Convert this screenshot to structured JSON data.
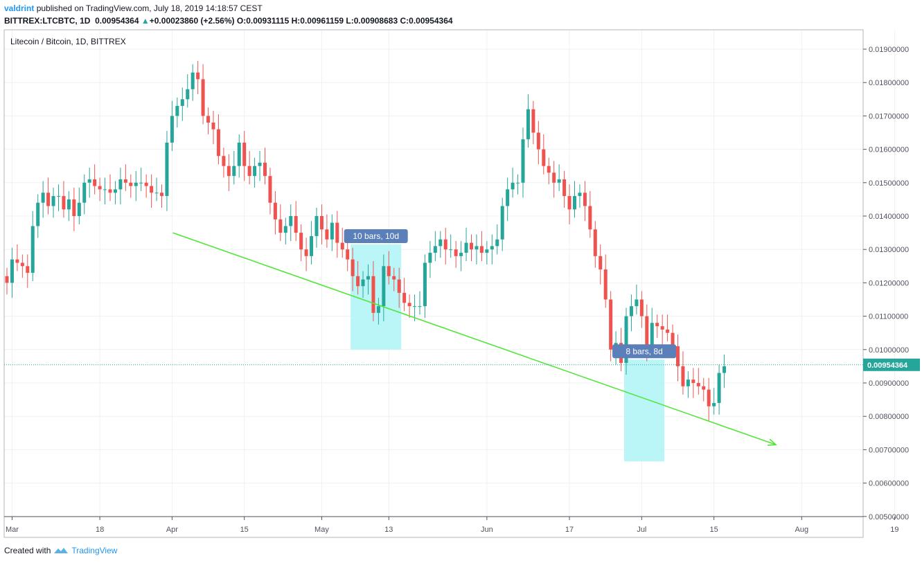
{
  "header": {
    "user": "valdrint",
    "published": "published on TradingView.com, July 18, 2019 14:18:57 CEST",
    "symbol": "BITTREX:LTCBTC, 1D",
    "last": "0.00954364",
    "change": "+0.00023860 (+2.56%)",
    "o_label": "O:",
    "o": "0.00931115",
    "h_label": "H:",
    "h": "0.00961159",
    "l_label": "L:",
    "l": "0.00908683",
    "c_label": "C:",
    "c": "0.00954364"
  },
  "footer": {
    "created": "Created with",
    "brand": "TradingView"
  },
  "colors": {
    "up": "#26a69a",
    "down": "#ef5350",
    "trend": "#53e63a",
    "highlight": "#aef5f7",
    "label_bg": "#5b7fb9",
    "price_tag": "#26a69a"
  },
  "chart_data": {
    "type": "candlestick",
    "title": "Litecoin / Bitcoin, 1D, BITTREX",
    "y_ticks": [
      "0.01900000",
      "0.01800000",
      "0.01700000",
      "0.01600000",
      "0.01500000",
      "0.01400000",
      "0.01300000",
      "0.01200000",
      "0.01100000",
      "0.01000000",
      "0.00900000",
      "0.00800000",
      "0.00700000",
      "0.00600000",
      "0.00500000"
    ],
    "ylim": [
      0.005,
      0.0197
    ],
    "x_ticks": [
      "Mar",
      "18",
      "Apr",
      "15",
      "May",
      "13",
      "Jun",
      "17",
      "Jul",
      "15",
      "Aug",
      "19"
    ],
    "current_price": "0.00954364",
    "closes": [
      0.012,
      0.0127,
      0.0126,
      0.0125,
      0.0123,
      0.0137,
      0.0144,
      0.0147,
      0.0143,
      0.0146,
      0.0146,
      0.0142,
      0.0145,
      0.014,
      0.0144,
      0.015,
      0.0151,
      0.0149,
      0.0148,
      0.0148,
      0.0147,
      0.0148,
      0.0151,
      0.015,
      0.0149,
      0.015,
      0.015,
      0.0149,
      0.0147,
      0.0147,
      0.0146,
      0.0162,
      0.017,
      0.0173,
      0.0175,
      0.0178,
      0.0183,
      0.0181,
      0.017,
      0.0168,
      0.0166,
      0.0158,
      0.0155,
      0.0152,
      0.0155,
      0.0162,
      0.0155,
      0.0152,
      0.0155,
      0.0156,
      0.0152,
      0.0144,
      0.0139,
      0.0135,
      0.0137,
      0.014,
      0.0135,
      0.013,
      0.0128,
      0.0134,
      0.014,
      0.0136,
      0.0133,
      0.0138,
      0.0132,
      0.013,
      0.0127,
      0.0122,
      0.0119,
      0.0121,
      0.0122,
      0.0111,
      0.0113,
      0.0125,
      0.0122,
      0.0121,
      0.0117,
      0.0114,
      0.0113,
      0.0113,
      0.0113,
      0.0126,
      0.0129,
      0.0131,
      0.0133,
      0.013,
      0.013,
      0.0128,
      0.0129,
      0.0132,
      0.013,
      0.0131,
      0.0129,
      0.013,
      0.0131,
      0.0133,
      0.0143,
      0.0148,
      0.015,
      0.015,
      0.0163,
      0.0172,
      0.0165,
      0.016,
      0.0155,
      0.0153,
      0.015,
      0.0151,
      0.0146,
      0.0142,
      0.0146,
      0.0147,
      0.0143,
      0.0136,
      0.0128,
      0.0124,
      0.0115,
      0.01,
      0.0102,
      0.0096,
      0.011,
      0.0113,
      0.0115,
      0.011,
      0.0101,
      0.0108,
      0.0107,
      0.0106,
      0.0105,
      0.0101,
      0.0095,
      0.0089,
      0.0091,
      0.009,
      0.0089,
      0.0088,
      0.0083,
      0.0084,
      0.0093,
      0.0095
    ],
    "trend_line": {
      "from": {
        "date": "Apr 1",
        "price": 0.0135
      },
      "to": {
        "date": "Jul 27",
        "price": 0.00715
      }
    },
    "ranges": [
      {
        "label": "10 bars, 10d",
        "price_top": 0.01315,
        "price_bottom": 0.01
      },
      {
        "label": "8 bars, 8d",
        "price_top": 0.0097,
        "price_bottom": 0.00665
      }
    ]
  }
}
